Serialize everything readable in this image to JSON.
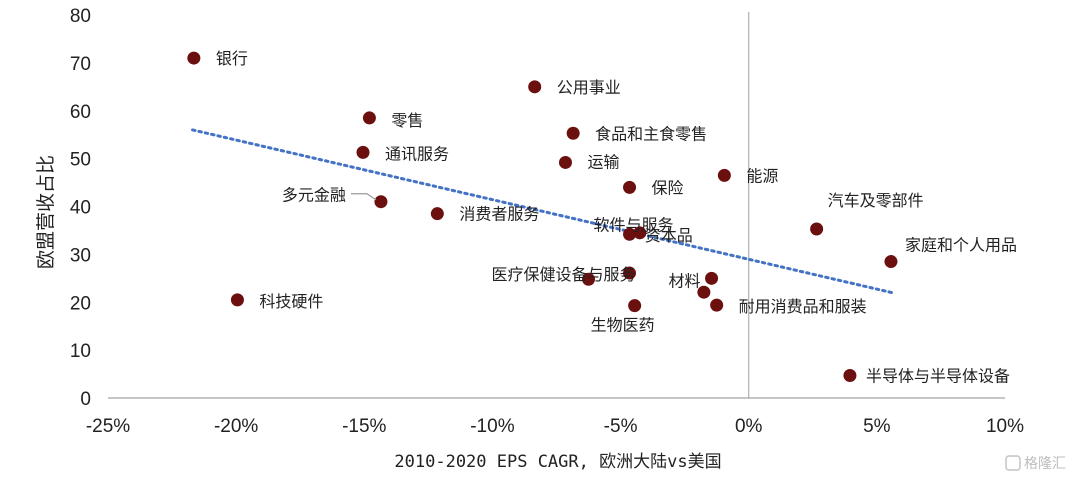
{
  "chart_data": {
    "type": "scatter",
    "xlabel": "2010-2020 EPS CAGR, 欧洲大陆vs美国",
    "ylabel": "欧盟营收占比",
    "xlim": [
      -0.25,
      0.1
    ],
    "ylim": [
      0,
      80
    ],
    "x_ticks": [
      -0.25,
      -0.2,
      -0.15,
      -0.1,
      -0.05,
      0.0,
      0.05,
      0.1
    ],
    "x_tick_labels": [
      "-25%",
      "-20%",
      "-15%",
      "-10%",
      "-5%",
      "0%",
      "5%",
      "10%"
    ],
    "y_ticks": [
      0,
      10,
      20,
      30,
      40,
      50,
      60,
      70,
      80
    ],
    "y_tick_labels": [
      "0",
      "10",
      "20",
      "30",
      "40",
      "50",
      "60",
      "70",
      "80"
    ],
    "point_color": "#6b0f0f",
    "trendline": {
      "style": "dotted",
      "color": "#4472c4",
      "x": [
        -0.217,
        0.056
      ],
      "y": [
        56,
        22
      ]
    },
    "reference_line": {
      "x": 0.0,
      "color": "#b0b0b0"
    },
    "points": [
      {
        "x": -0.2165,
        "y": 71,
        "label": "银行"
      },
      {
        "x": -0.0835,
        "y": 65,
        "label": "公用事业"
      },
      {
        "x": -0.148,
        "y": 58.5,
        "label": "零售"
      },
      {
        "x": -0.0685,
        "y": 55.3,
        "label": "食品和主食零售"
      },
      {
        "x": -0.1505,
        "y": 51.3,
        "label": "通讯服务"
      },
      {
        "x": -0.0715,
        "y": 49.2,
        "label": "运输"
      },
      {
        "x": -0.0095,
        "y": 46.5,
        "label": "能源"
      },
      {
        "x": -0.0465,
        "y": 44,
        "label": "保险"
      },
      {
        "x": -0.1435,
        "y": 41,
        "label": "多元金融"
      },
      {
        "x": -0.1215,
        "y": 38.5,
        "label": "消费者服务"
      },
      {
        "x": 0.0265,
        "y": 35.3,
        "label": "汽车及零部件"
      },
      {
        "x": -0.0465,
        "y": 34.2,
        "label": "软件与服务"
      },
      {
        "x": -0.0425,
        "y": 34.5,
        "label": "资本品"
      },
      {
        "x": 0.0555,
        "y": 28.5,
        "label": "家庭和个人用品"
      },
      {
        "x": -0.0465,
        "y": 26.1,
        "label": "医疗保健设备与服务"
      },
      {
        "x": -0.0625,
        "y": 24.8,
        "label": ""
      },
      {
        "x": -0.0145,
        "y": 25,
        "label": "材料"
      },
      {
        "x": -0.0175,
        "y": 22.1,
        "label": ""
      },
      {
        "x": -0.0125,
        "y": 19.4,
        "label": "耐用消费品和服装"
      },
      {
        "x": -0.0445,
        "y": 19.3,
        "label": "生物医药"
      },
      {
        "x": -0.1995,
        "y": 20.5,
        "label": "科技硬件"
      },
      {
        "x": 0.0395,
        "y": 4.7,
        "label": "半导体与半导体设备"
      }
    ]
  },
  "watermark": {
    "text": "格隆汇"
  }
}
